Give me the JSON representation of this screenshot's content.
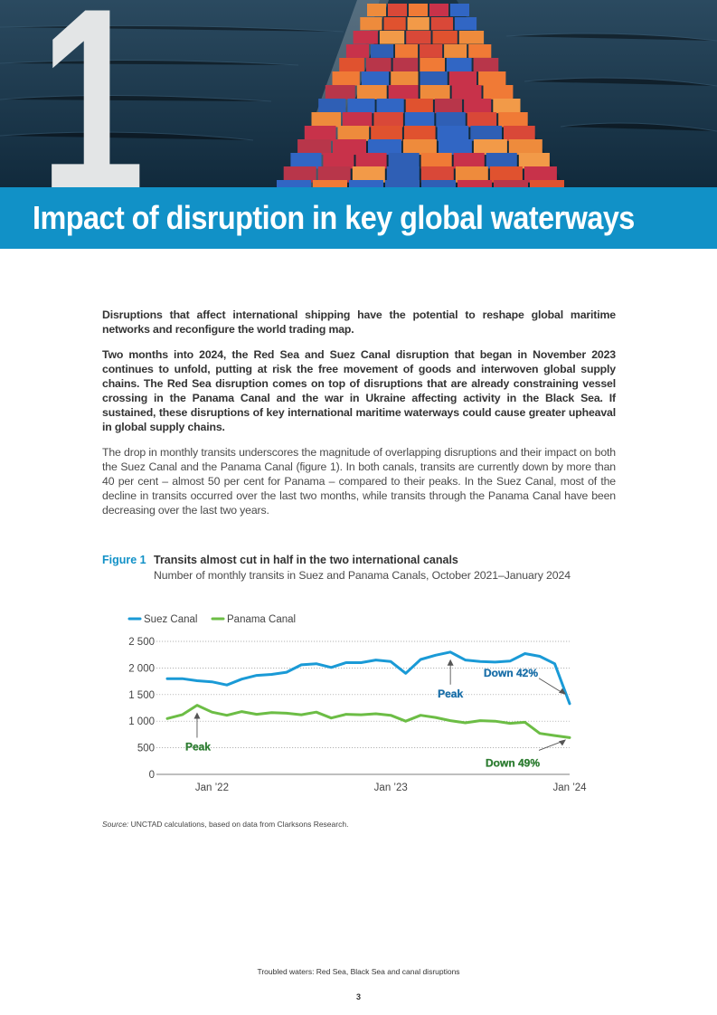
{
  "chapter": {
    "number": "1",
    "title": "Impact of disruption in key global waterways"
  },
  "intro": {
    "p1": "Disruptions that affect international shipping have the potential to reshape global maritime networks and reconfigure the world trading map.",
    "p2": "Two months into 2024, the Red Sea and Suez Canal disruption that began in November 2023 continues to unfold, putting at risk the free movement of goods and interwoven global supply chains. The Red Sea disruption comes on top of disruptions that are already constraining vessel crossing in the Panama Canal and the war in Ukraine affecting activity in the Black Sea. If sustained, these disruptions of key international maritime waterways could cause greater upheaval in global supply chains.",
    "p3": "The drop in monthly transits underscores the magnitude of overlapping disruptions and their impact on both the Suez Canal and the Panama Canal (figure 1). In both canals, transits are currently down by more than 40 per cent – almost 50 per cent for Panama – compared to their peaks. In the Suez Canal, most of the decline in transits occurred over the last two months, while transits through the Panama Canal have been decreasing over the last two years."
  },
  "figure": {
    "label": "Figure 1",
    "title": "Transits almost cut in half in the two international canals",
    "subtitle": "Number of monthly transits in Suez and Panama Canals, October 2021–January 2024"
  },
  "chart_data": {
    "type": "line",
    "title": "Transits almost cut in half in the two international canals",
    "subtitle": "Number of monthly transits in Suez and Panama Canals, October 2021–January 2024",
    "xlabel": "",
    "ylabel": "",
    "x": [
      "Oct 2021",
      "Nov 2021",
      "Dec 2021",
      "Jan 2022",
      "Feb 2022",
      "Mar 2022",
      "Apr 2022",
      "May 2022",
      "Jun 2022",
      "Jul 2022",
      "Aug 2022",
      "Sep 2022",
      "Oct 2022",
      "Nov 2022",
      "Dec 2022",
      "Jan 2023",
      "Feb 2023",
      "Mar 2023",
      "Apr 2023",
      "May 2023",
      "Jun 2023",
      "Jul 2023",
      "Aug 2023",
      "Sep 2023",
      "Oct 2023",
      "Nov 2023",
      "Dec 2023",
      "Jan 2024"
    ],
    "x_ticks": [
      "Jan ’22",
      "Jan ’23",
      "Jan ’24"
    ],
    "y_ticks": [
      "0",
      "500",
      "1 000",
      "1 500",
      "2 000",
      "2 500"
    ],
    "ylim": [
      0,
      2500
    ],
    "grid": true,
    "legend_position": "top-left",
    "series": [
      {
        "name": "Suez Canal",
        "color": "#1a9ad6",
        "values": [
          1800,
          1800,
          1760,
          1740,
          1680,
          1790,
          1860,
          1880,
          1920,
          2060,
          2080,
          2010,
          2100,
          2100,
          2150,
          2120,
          1900,
          2160,
          2240,
          2300,
          2150,
          2120,
          2110,
          2130,
          2270,
          2220,
          2080,
          1330
        ]
      },
      {
        "name": "Panama Canal",
        "color": "#6cbd45",
        "values": [
          1050,
          1120,
          1300,
          1170,
          1110,
          1180,
          1130,
          1160,
          1150,
          1120,
          1170,
          1060,
          1130,
          1120,
          1140,
          1110,
          1000,
          1110,
          1070,
          1010,
          970,
          1010,
          1000,
          960,
          980,
          770,
          730,
          690
        ]
      }
    ],
    "annotations": [
      {
        "text": "Peak",
        "series": "Panama Canal",
        "point": "Dec 2021",
        "color": "#2e7d32"
      },
      {
        "text": "Peak",
        "series": "Suez Canal",
        "point": "May 2023",
        "color": "#1a6fa8"
      },
      {
        "text": "Down 42%",
        "series": "Suez Canal",
        "point": "Jan 2024",
        "color": "#1a6fa8"
      },
      {
        "text": "Down 49%",
        "series": "Panama Canal",
        "point": "Jan 2024",
        "color": "#2e7d32"
      }
    ]
  },
  "source": {
    "label": "Source:",
    "text": " UNCTAD  calculations, based on data from Clarksons Research."
  },
  "footer": {
    "publication": "Troubled waters: Red Sea, Black Sea and canal disruptions",
    "page": "3"
  },
  "colors": {
    "band": "#1191c7",
    "suez": "#1a9ad6",
    "panama": "#6cbd45"
  }
}
